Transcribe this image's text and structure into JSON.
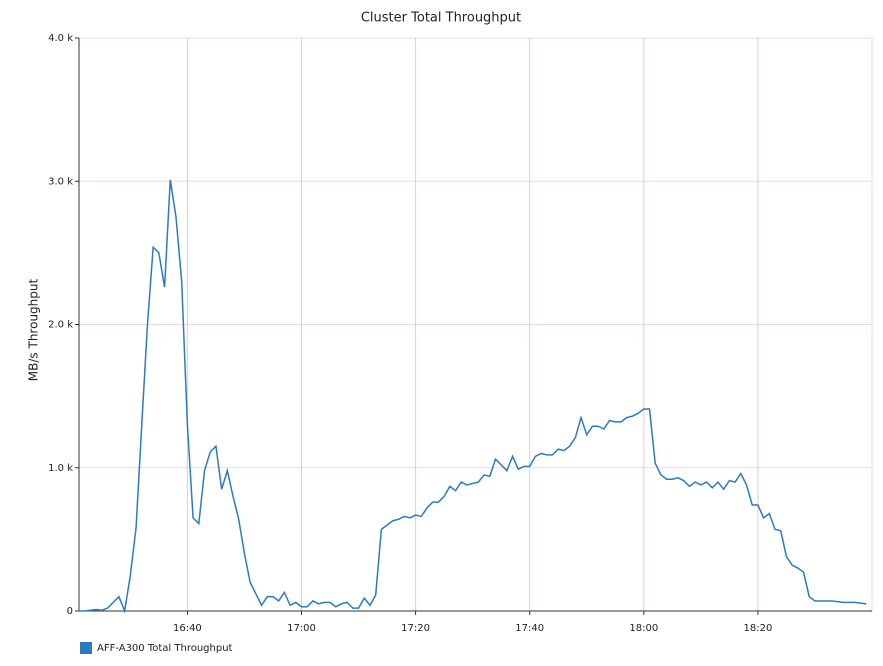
{
  "chart_data": {
    "type": "line",
    "title": "Cluster Total Throughput",
    "y_label": "MB/s Throughput",
    "x": [
      "16:21",
      "16:22",
      "16:23",
      "16:24",
      "16:25",
      "16:26",
      "16:27",
      "16:28",
      "16:29",
      "16:30",
      "16:31",
      "16:32",
      "16:33",
      "16:34",
      "16:35",
      "16:36",
      "16:37",
      "16:38",
      "16:39",
      "16:40",
      "16:41",
      "16:42",
      "16:43",
      "16:44",
      "16:45",
      "16:46",
      "16:47",
      "16:48",
      "16:49",
      "16:50",
      "16:51",
      "16:52",
      "16:53",
      "16:54",
      "16:55",
      "16:56",
      "16:57",
      "16:58",
      "16:59",
      "17:00",
      "17:01",
      "17:02",
      "17:03",
      "17:04",
      "17:05",
      "17:06",
      "17:07",
      "17:08",
      "17:09",
      "17:10",
      "17:11",
      "17:12",
      "17:13",
      "17:14",
      "17:15",
      "17:16",
      "17:17",
      "17:18",
      "17:19",
      "17:20",
      "17:21",
      "17:22",
      "17:23",
      "17:24",
      "17:25",
      "17:26",
      "17:27",
      "17:28",
      "17:29",
      "17:30",
      "17:31",
      "17:32",
      "17:33",
      "17:34",
      "17:35",
      "17:36",
      "17:37",
      "17:38",
      "17:39",
      "17:40",
      "17:41",
      "17:42",
      "17:43",
      "17:44",
      "17:45",
      "17:46",
      "17:47",
      "17:48",
      "17:49",
      "17:50",
      "17:51",
      "17:52",
      "17:53",
      "17:54",
      "17:55",
      "17:56",
      "17:57",
      "17:58",
      "17:59",
      "18:00",
      "18:01",
      "18:02",
      "18:03",
      "18:04",
      "18:05",
      "18:06",
      "18:07",
      "18:08",
      "18:09",
      "18:10",
      "18:11",
      "18:12",
      "18:13",
      "18:14",
      "18:15",
      "18:16",
      "18:17",
      "18:18",
      "18:19",
      "18:20",
      "18:21",
      "18:22",
      "18:23",
      "18:24",
      "18:25",
      "18:26",
      "18:27",
      "18:28",
      "18:29",
      "18:30",
      "18:31",
      "18:32",
      "18:33",
      "18:34",
      "18:35",
      "18:36",
      "18:37",
      "18:38",
      "18:39"
    ],
    "series": [
      {
        "name": "AFF-A300 Total Throughput",
        "color": "#2b7bc0",
        "values": [
          0,
          0,
          5,
          10,
          5,
          20,
          60,
          100,
          0,
          250,
          580,
          1300,
          2000,
          2540,
          2500,
          2260,
          3010,
          2750,
          2300,
          1300,
          650,
          610,
          980,
          1110,
          1150,
          850,
          980,
          800,
          640,
          400,
          200,
          120,
          40,
          100,
          100,
          70,
          130,
          40,
          60,
          30,
          30,
          70,
          50,
          60,
          60,
          30,
          50,
          60,
          20,
          20,
          90,
          40,
          110,
          570,
          600,
          630,
          640,
          660,
          650,
          670,
          660,
          720,
          760,
          760,
          800,
          870,
          840,
          900,
          880,
          890,
          900,
          950,
          940,
          1060,
          1020,
          980,
          1080,
          990,
          1010,
          1010,
          1080,
          1100,
          1090,
          1090,
          1130,
          1120,
          1150,
          1210,
          1350,
          1230,
          1290,
          1290,
          1270,
          1330,
          1320,
          1320,
          1350,
          1360,
          1380,
          1410,
          1410,
          1030,
          950,
          920,
          920,
          930,
          910,
          870,
          900,
          880,
          900,
          860,
          900,
          850,
          910,
          900,
          960,
          880,
          740,
          740,
          650,
          680,
          570,
          560,
          380,
          320,
          300,
          270,
          100,
          70,
          70,
          70,
          70,
          65,
          60,
          60,
          60,
          55,
          50
        ]
      }
    ],
    "xlim": [
      "16:21",
      "18:40"
    ],
    "xticks": [
      "16:40",
      "17:00",
      "17:20",
      "17:40",
      "18:00",
      "18:20"
    ],
    "ylim": [
      0,
      4000
    ],
    "yticks": [
      0,
      {
        "value": 1000,
        "label": "1.0 k"
      },
      {
        "value": 2000,
        "label": "2.0 k"
      },
      {
        "value": 3000,
        "label": "3.0 k"
      },
      {
        "value": 4000,
        "label": "4.0 k"
      }
    ],
    "grid": true,
    "legend": "bottom-left"
  }
}
